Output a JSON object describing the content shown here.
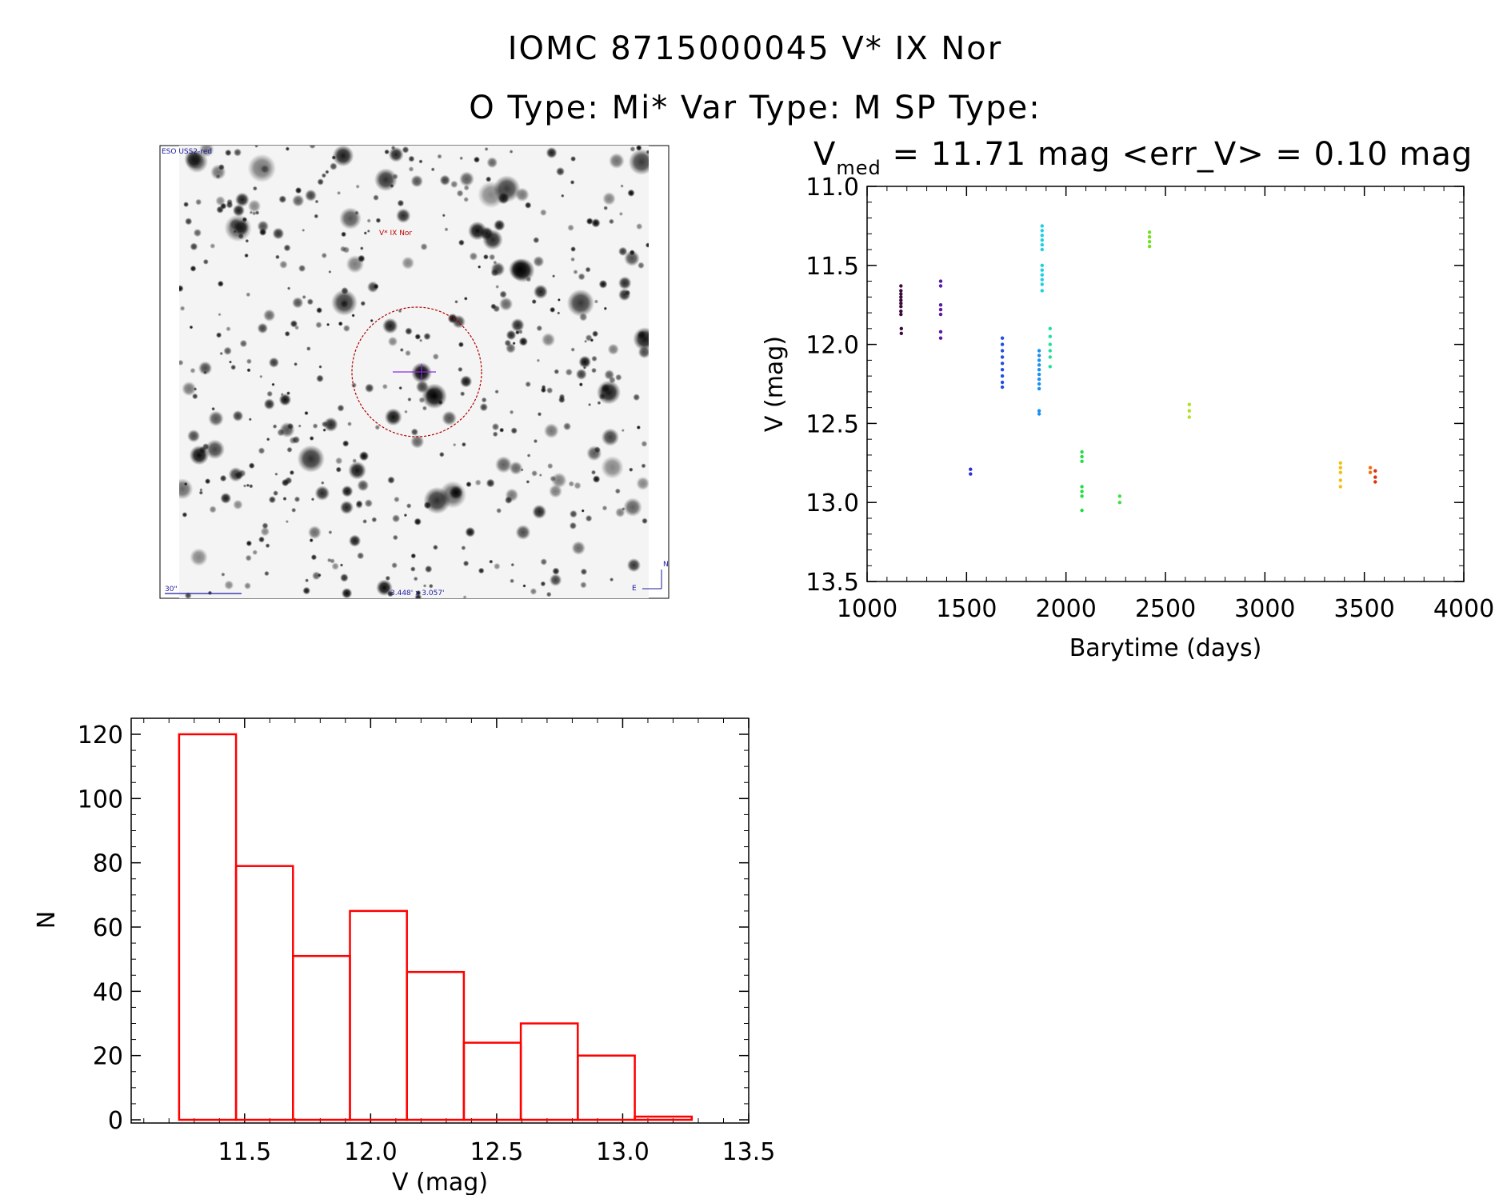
{
  "header": {
    "title": "IOMC 8715000045    V* IX Nor",
    "subtitle": "O Type: Mi*  Var Type: M  SP Type:"
  },
  "finder": {
    "survey_label": "ESO USS2-red",
    "star_label": "V* IX Nor",
    "scale_label": "30\"",
    "size_label": "3.448' x 3.057'",
    "north_label": "N",
    "east_label": "E"
  },
  "chart_data": [
    {
      "type": "scatter",
      "title_main": "V",
      "title_sub": "med",
      "title_rest": " = 11.71 mag <err_V> = 0.10 mag",
      "xlabel": "Barytime (days)",
      "ylabel": "V (mag)",
      "xlim": [
        1000,
        4000
      ],
      "ylim": [
        13.5,
        11.0
      ],
      "y_inverted": true,
      "xticks": [
        1000,
        1500,
        2000,
        2500,
        3000,
        3500,
        4000
      ],
      "yticks": [
        "11.0",
        "11.5",
        "12.0",
        "12.5",
        "13.0",
        "13.5"
      ],
      "groups": [
        {
          "color": "#3a0a3a",
          "points": [
            [
              1170,
              11.63
            ],
            [
              1170,
              11.66
            ],
            [
              1170,
              11.68
            ],
            [
              1170,
              11.7
            ],
            [
              1170,
              11.72
            ],
            [
              1170,
              11.74
            ],
            [
              1170,
              11.76
            ],
            [
              1170,
              11.79
            ],
            [
              1170,
              11.81
            ],
            [
              1172,
              11.9
            ],
            [
              1172,
              11.93
            ]
          ]
        },
        {
          "color": "#5a1aa0",
          "points": [
            [
              1370,
              11.6
            ],
            [
              1370,
              11.63
            ],
            [
              1370,
              11.75
            ],
            [
              1370,
              11.78
            ],
            [
              1370,
              11.81
            ],
            [
              1370,
              11.92
            ],
            [
              1370,
              11.96
            ]
          ]
        },
        {
          "color": "#2a30d0",
          "points": [
            [
              1520,
              12.79
            ],
            [
              1520,
              12.82
            ]
          ]
        },
        {
          "color": "#2050e0",
          "points": [
            [
              1680,
              11.96
            ],
            [
              1680,
              12.0
            ],
            [
              1680,
              12.04
            ],
            [
              1680,
              12.08
            ],
            [
              1680,
              12.12
            ],
            [
              1680,
              12.16
            ],
            [
              1680,
              12.2
            ],
            [
              1680,
              12.24
            ],
            [
              1680,
              12.27
            ]
          ]
        },
        {
          "color": "#1a90f0",
          "points": [
            [
              1865,
              12.04
            ],
            [
              1865,
              12.07
            ],
            [
              1865,
              12.1
            ],
            [
              1865,
              12.13
            ],
            [
              1865,
              12.16
            ],
            [
              1865,
              12.19
            ],
            [
              1865,
              12.22
            ],
            [
              1865,
              12.25
            ],
            [
              1865,
              12.28
            ],
            [
              1865,
              12.42
            ],
            [
              1865,
              12.44
            ]
          ]
        },
        {
          "color": "#20d0e0",
          "points": [
            [
              1880,
              11.25
            ],
            [
              1880,
              11.28
            ],
            [
              1880,
              11.31
            ],
            [
              1880,
              11.34
            ],
            [
              1880,
              11.37
            ],
            [
              1880,
              11.4
            ],
            [
              1880,
              11.5
            ],
            [
              1880,
              11.53
            ],
            [
              1880,
              11.56
            ],
            [
              1880,
              11.59
            ],
            [
              1880,
              11.62
            ],
            [
              1880,
              11.66
            ]
          ]
        },
        {
          "color": "#20e0a0",
          "points": [
            [
              1920,
              11.9
            ],
            [
              1920,
              11.95
            ],
            [
              1920,
              12.0
            ],
            [
              1920,
              12.04
            ],
            [
              1920,
              12.08
            ],
            [
              1920,
              12.14
            ]
          ]
        },
        {
          "color": "#20e040",
          "points": [
            [
              2080,
              12.68
            ],
            [
              2080,
              12.71
            ],
            [
              2080,
              12.74
            ],
            [
              2080,
              12.9
            ],
            [
              2080,
              12.93
            ],
            [
              2080,
              12.96
            ],
            [
              2080,
              13.05
            ]
          ]
        },
        {
          "color": "#40e040",
          "points": [
            [
              2270,
              12.96
            ],
            [
              2270,
              13.0
            ]
          ]
        },
        {
          "color": "#70e020",
          "points": [
            [
              2420,
              11.29
            ],
            [
              2420,
              11.32
            ],
            [
              2420,
              11.35
            ],
            [
              2420,
              11.38
            ]
          ]
        },
        {
          "color": "#b0e020",
          "points": [
            [
              2620,
              12.38
            ],
            [
              2620,
              12.42
            ],
            [
              2620,
              12.46
            ]
          ]
        },
        {
          "color": "#f0c010",
          "points": [
            [
              3380,
              12.75
            ],
            [
              3380,
              12.78
            ],
            [
              3380,
              12.81
            ],
            [
              3380,
              12.86
            ],
            [
              3380,
              12.9
            ]
          ]
        },
        {
          "color": "#f07010",
          "points": [
            [
              3530,
              12.78
            ],
            [
              3530,
              12.81
            ]
          ]
        },
        {
          "color": "#e03010",
          "points": [
            [
              3555,
              12.8
            ],
            [
              3555,
              12.84
            ],
            [
              3555,
              12.87
            ]
          ]
        }
      ]
    },
    {
      "type": "bar",
      "subtype": "histogram",
      "xlabel": "V (mag)",
      "ylabel": "N",
      "xlim": [
        11.05,
        13.5
      ],
      "ylim": [
        0,
        120
      ],
      "xticks": [
        "11.5",
        "12.0",
        "12.5",
        "13.0",
        "13.5"
      ],
      "yticks": [
        "0",
        "20",
        "40",
        "60",
        "80",
        "100",
        "120"
      ],
      "bin_edges": [
        11.24,
        11.466,
        11.692,
        11.918,
        12.144,
        12.37,
        12.596,
        12.822,
        13.048,
        13.274
      ],
      "values": [
        120,
        79,
        51,
        65,
        46,
        24,
        30,
        20,
        1
      ],
      "color": "#ff0000"
    }
  ]
}
